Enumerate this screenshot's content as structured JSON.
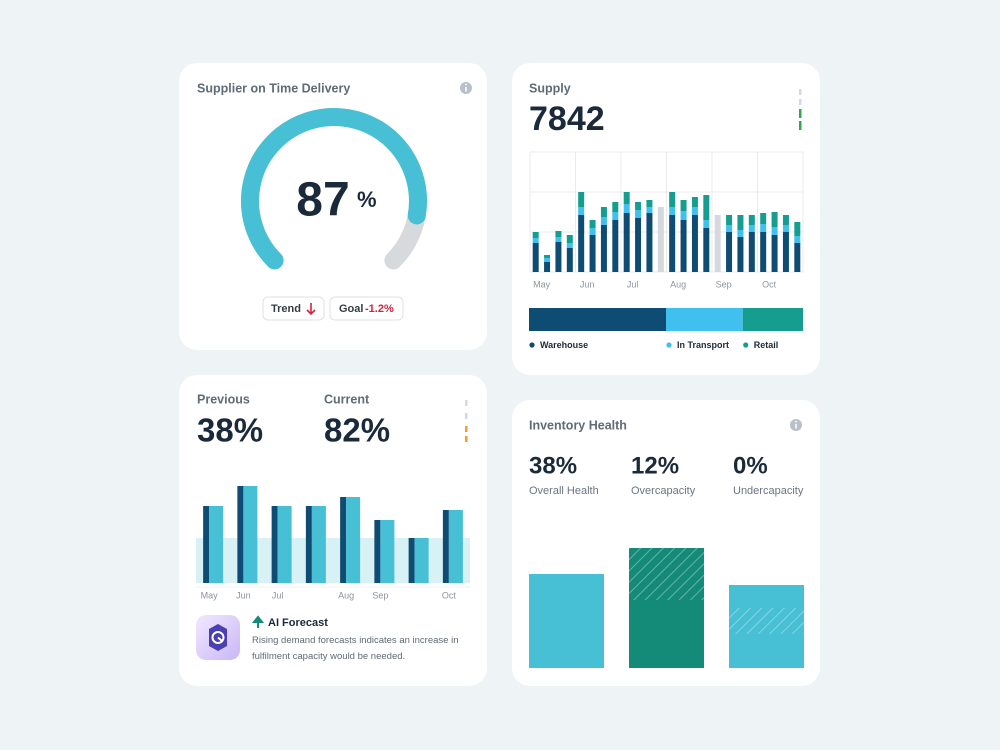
{
  "delivery": {
    "title": "Supplier on Time Delivery",
    "value": 87,
    "unit": "%",
    "range": [
      0,
      100
    ],
    "trend": "Trend",
    "goal_label": "Goal",
    "goal_value": "-1.2%",
    "colors": [
      "#47bfd4",
      "#d7dadd"
    ]
  },
  "supply": {
    "title": "Supply",
    "value": "7842",
    "chart": {
      "type": "bar",
      "stacked": true,
      "categories": [
        "May",
        null,
        null,
        null,
        "Jun",
        null,
        null,
        null,
        "Jul",
        null,
        null,
        null,
        "Aug",
        null,
        null,
        null,
        "Sep",
        null,
        null,
        null,
        "Oct",
        null,
        null,
        null
      ],
      "series": [
        {
          "name": "Warehouse",
          "color": "#0f4c73",
          "values": [
            29,
            10,
            30,
            24,
            57,
            37,
            47,
            52,
            59,
            54,
            59,
            65,
            57,
            52,
            57,
            44,
            57,
            40,
            35,
            40,
            40,
            37,
            40,
            29
          ]
        },
        {
          "name": "In Transport",
          "color": "#40c0ee",
          "values": [
            5,
            4,
            5,
            5,
            8,
            7,
            8,
            8,
            9,
            8,
            6,
            null,
            8,
            9,
            8,
            8,
            null,
            7,
            7,
            7,
            8,
            8,
            7,
            7
          ]
        },
        {
          "name": "Retail",
          "color": "#159e8f",
          "values": [
            6,
            3,
            6,
            8,
            15,
            8,
            10,
            10,
            12,
            8,
            7,
            null,
            15,
            11,
            10,
            25,
            null,
            10,
            15,
            10,
            11,
            15,
            10,
            14
          ]
        }
      ],
      "point_colors": [
        null,
        null,
        null,
        null,
        null,
        null,
        null,
        null,
        null,
        null,
        null,
        "#d5d8dc",
        null,
        null,
        null,
        null,
        "#d5d8dc",
        null,
        null,
        null,
        null,
        null,
        null,
        null
      ],
      "ylim": [
        0,
        120
      ],
      "grid": true
    },
    "share": {
      "values": [
        50,
        28,
        22
      ]
    }
  },
  "comparison": {
    "previous_label": "Previous",
    "previous": "38%",
    "current_label": "Current",
    "current": "82%",
    "chart": {
      "type": "bar",
      "categories": [
        "May",
        "Jun",
        "Jul",
        null,
        "Aug",
        "Sep",
        null,
        "Oct"
      ],
      "series": [
        {
          "color": "#0f4c73",
          "values": [
            77,
            97,
            77,
            77,
            86,
            63,
            45,
            73
          ]
        },
        {
          "color": "#47bfd4",
          "values": [
            77,
            97,
            77,
            77,
            86,
            63,
            45,
            73
          ]
        }
      ],
      "band": 45,
      "band_color": "#d8f1f5",
      "ylim": [
        0,
        100
      ]
    },
    "forecast": {
      "title": "AI Forecast",
      "text": "Rising demand forecasts indicates an increase in fulfilment capacity would be needed."
    }
  },
  "inventory": {
    "title": "Inventory Health",
    "stats": [
      {
        "value": "38%",
        "label": "Overall Health"
      },
      {
        "value": "12%",
        "label": "Overcapacity"
      },
      {
        "value": "0%",
        "label": "Undercapacity"
      }
    ],
    "chart": {
      "type": "bar",
      "ylim": [
        0,
        120
      ],
      "bars": [
        {
          "color": "#47bfd4",
          "values": [
            94
          ],
          "hatched": [
            false
          ]
        },
        {
          "color": "#148a78",
          "values": [
            68,
            52
          ],
          "hatched": [
            false,
            true
          ]
        },
        {
          "color": "#47bfd4",
          "values": [
            34,
            26,
            23
          ],
          "hatched": [
            false,
            true,
            false
          ]
        }
      ]
    }
  }
}
